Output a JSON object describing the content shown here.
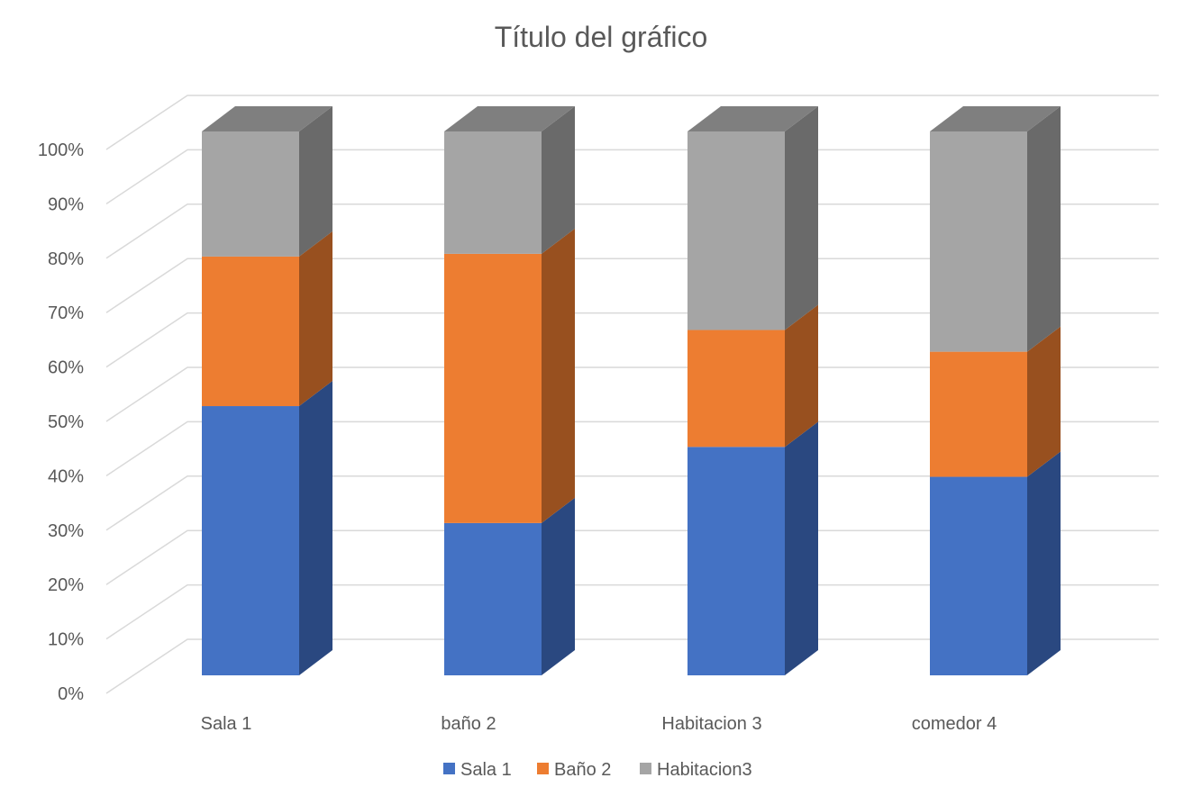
{
  "chart_data": {
    "type": "bar",
    "stacked": "percent",
    "three_d": true,
    "title": "Título del gráfico",
    "categories": [
      "Sala 1",
      "baño 2",
      "Habitacion 3",
      "comedor 4"
    ],
    "series": [
      {
        "name": "Sala 1",
        "color": "#4472C4",
        "side_color": "#2A4880",
        "top_color": "#3A5FA3",
        "values": [
          49.5,
          28,
          42,
          36.5
        ]
      },
      {
        "name": "Baño 2",
        "color": "#ED7D31",
        "side_color": "#98501F",
        "top_color": "#C0662A",
        "values": [
          27.5,
          49.5,
          21.5,
          23
        ]
      },
      {
        "name": "Habitacion3",
        "color": "#A5A5A5",
        "side_color": "#6A6A6A",
        "top_color": "#7F7F7F",
        "values": [
          23,
          22.5,
          36.5,
          40.5
        ]
      }
    ],
    "y_ticks": [
      "0%",
      "10%",
      "20%",
      "30%",
      "40%",
      "50%",
      "60%",
      "70%",
      "80%",
      "90%",
      "100%"
    ],
    "ylim": [
      0,
      100
    ],
    "grid": true,
    "legend": "bottom"
  }
}
